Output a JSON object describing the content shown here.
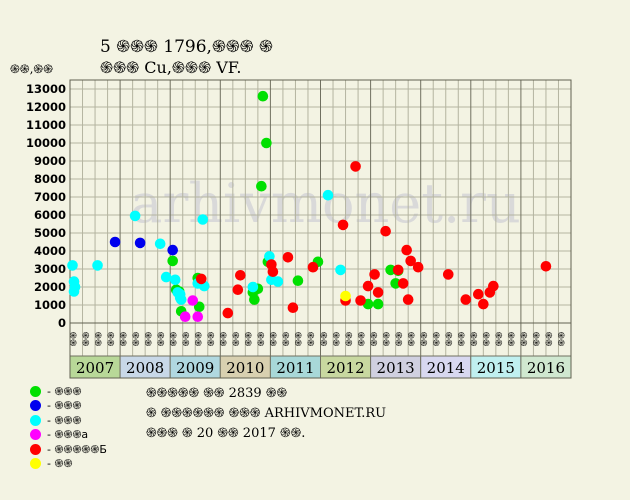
{
  "header": {
    "title_line1": "5 ֍֍֍ 1796,֍֍֍ ֍",
    "title_line2": "֍֍֍ Cu,֍֍֍ VF.",
    "y_unit": "֍֍,֍֍"
  },
  "legend": [
    {
      "label": "- ֍֍֍",
      "color": "#00e000"
    },
    {
      "label": "- ֍֍֍",
      "color": "#0000ee"
    },
    {
      "label": "- ֍֍֍",
      "color": "#00ffff"
    },
    {
      "label": "- ֍֍֍a",
      "color": "#ff00ff"
    },
    {
      "label": "- ֍֍֍֍֍Б",
      "color": "#ff0000"
    },
    {
      "label": "- ֍֍",
      "color": "#ffff00"
    }
  ],
  "info": {
    "line1": "֍֍֍֍֍ ֍֍ 2839 ֍֍",
    "line2": "֍ ֍֍֍֍֍֍ ֍֍֍ ARHIVMONET.RU",
    "line3": "֍֍֍ ֍ 20 ֍֍ 2017 ֍֍."
  },
  "watermark": "arhivmonet.ru",
  "chart_data": {
    "type": "scatter",
    "ylim": [
      0,
      13500
    ],
    "y_ticks": [
      0,
      1000,
      2000,
      3000,
      4000,
      5000,
      6000,
      7000,
      8000,
      9000,
      10000,
      11000,
      12000,
      13000
    ],
    "x_range": [
      2007,
      2017
    ],
    "years": [
      "2007",
      "2008",
      "2009",
      "2010",
      "2011",
      "2012",
      "2013",
      "2014",
      "2015",
      "2016"
    ],
    "year_colors": [
      "#b8d898",
      "#c8d8e8",
      "#b0d8e0",
      "#d8d0b0",
      "#a8d8d8",
      "#c8d8a0",
      "#d0d0e0",
      "#d8d8f0",
      "#c0f0f0",
      "#d0e8d0"
    ],
    "month_labels": [
      "֍֍",
      "֍֍",
      "֍֍",
      "֍֍"
    ],
    "grid": true,
    "series": [
      {
        "color": "#00e000",
        "points": [
          [
            2009.05,
            3450
          ],
          [
            2009.12,
            1850
          ],
          [
            2009.18,
            1750
          ],
          [
            2009.22,
            650
          ],
          [
            2009.55,
            2500
          ],
          [
            2009.58,
            900
          ],
          [
            2010.65,
            1700
          ],
          [
            2010.68,
            1300
          ],
          [
            2010.75,
            1900
          ],
          [
            2010.82,
            7600
          ],
          [
            2010.85,
            12600
          ],
          [
            2010.92,
            10000
          ],
          [
            2010.95,
            3400
          ],
          [
            2011.55,
            2350
          ],
          [
            2011.95,
            3400
          ],
          [
            2012.95,
            1050
          ],
          [
            2013.15,
            1050
          ],
          [
            2013.4,
            2950
          ],
          [
            2013.5,
            2200
          ],
          [
            2013.55,
            2900
          ]
        ]
      },
      {
        "color": "#0000ee",
        "points": [
          [
            2007.9,
            4500
          ],
          [
            2008.4,
            4450
          ],
          [
            2009.05,
            4050
          ]
        ]
      },
      {
        "color": "#00ffff",
        "points": [
          [
            2007.05,
            3200
          ],
          [
            2007.08,
            2300
          ],
          [
            2007.1,
            2000
          ],
          [
            2007.08,
            1750
          ],
          [
            2007.55,
            3200
          ],
          [
            2008.3,
            5950
          ],
          [
            2008.8,
            4400
          ],
          [
            2008.92,
            2550
          ],
          [
            2009.1,
            2400
          ],
          [
            2009.15,
            1700
          ],
          [
            2009.2,
            1600
          ],
          [
            2009.2,
            1400
          ],
          [
            2009.22,
            1300
          ],
          [
            2009.55,
            2200
          ],
          [
            2009.65,
            5750
          ],
          [
            2009.68,
            2050
          ],
          [
            2010.65,
            2000
          ],
          [
            2010.98,
            3700
          ],
          [
            2011.02,
            2400
          ],
          [
            2011.15,
            2300
          ],
          [
            2012.15,
            7100
          ],
          [
            2012.4,
            2950
          ]
        ]
      },
      {
        "color": "#ff00ff",
        "points": [
          [
            2009.3,
            350
          ],
          [
            2009.45,
            1250
          ],
          [
            2009.55,
            350
          ]
        ]
      },
      {
        "color": "#ff0000",
        "points": [
          [
            2009.62,
            2450
          ],
          [
            2010.15,
            550
          ],
          [
            2010.35,
            1850
          ],
          [
            2010.4,
            2650
          ],
          [
            2011.02,
            3250
          ],
          [
            2011.05,
            2850
          ],
          [
            2011.35,
            3650
          ],
          [
            2011.45,
            850
          ],
          [
            2011.85,
            3100
          ],
          [
            2012.45,
            5450
          ],
          [
            2012.5,
            1250
          ],
          [
            2012.7,
            8700
          ],
          [
            2012.8,
            1250
          ],
          [
            2012.95,
            2050
          ],
          [
            2013.08,
            2700
          ],
          [
            2013.15,
            1700
          ],
          [
            2013.3,
            5100
          ],
          [
            2013.55,
            2950
          ],
          [
            2013.65,
            2200
          ],
          [
            2013.72,
            4050
          ],
          [
            2013.75,
            1300
          ],
          [
            2013.8,
            3450
          ],
          [
            2013.95,
            3100
          ],
          [
            2014.55,
            2700
          ],
          [
            2014.9,
            1300
          ],
          [
            2015.15,
            1600
          ],
          [
            2015.25,
            1050
          ],
          [
            2015.38,
            1700
          ],
          [
            2015.45,
            2050
          ],
          [
            2016.5,
            3150
          ]
        ]
      },
      {
        "color": "#ffff00",
        "points": [
          [
            2012.5,
            1500
          ]
        ]
      }
    ]
  }
}
